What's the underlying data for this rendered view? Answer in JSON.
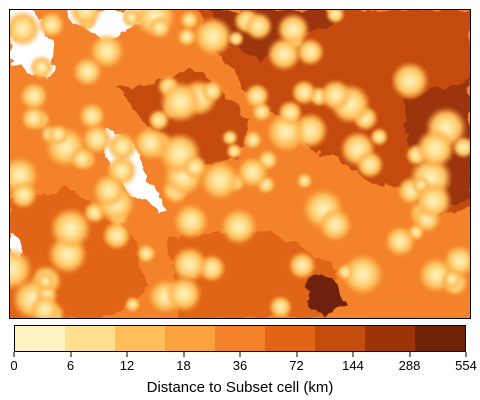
{
  "legend": {
    "title": "Distance to Subset cell (km)",
    "breaks": [
      "0",
      "6",
      "12",
      "18",
      "36",
      "72",
      "144",
      "288",
      "554"
    ],
    "colors": [
      "#fff3c4",
      "#fedf90",
      "#febe5a",
      "#fba13e",
      "#f3822a",
      "#e16515",
      "#c44c0d",
      "#9c3408",
      "#6e2307"
    ]
  },
  "map": {
    "nodata_color": "#ffffff",
    "background_level": "#f3822a",
    "regions": [
      {
        "name": "far-northeast-region",
        "color": "#c44c0d"
      },
      {
        "name": "east-far-region",
        "color": "#9c3408"
      },
      {
        "name": "southeast-small-far-patch",
        "color": "#6e2307"
      },
      {
        "name": "northwest-nodata-area",
        "color": "#ffffff"
      },
      {
        "name": "west-coast-nodata-strip",
        "color": "#ffffff"
      }
    ]
  }
}
